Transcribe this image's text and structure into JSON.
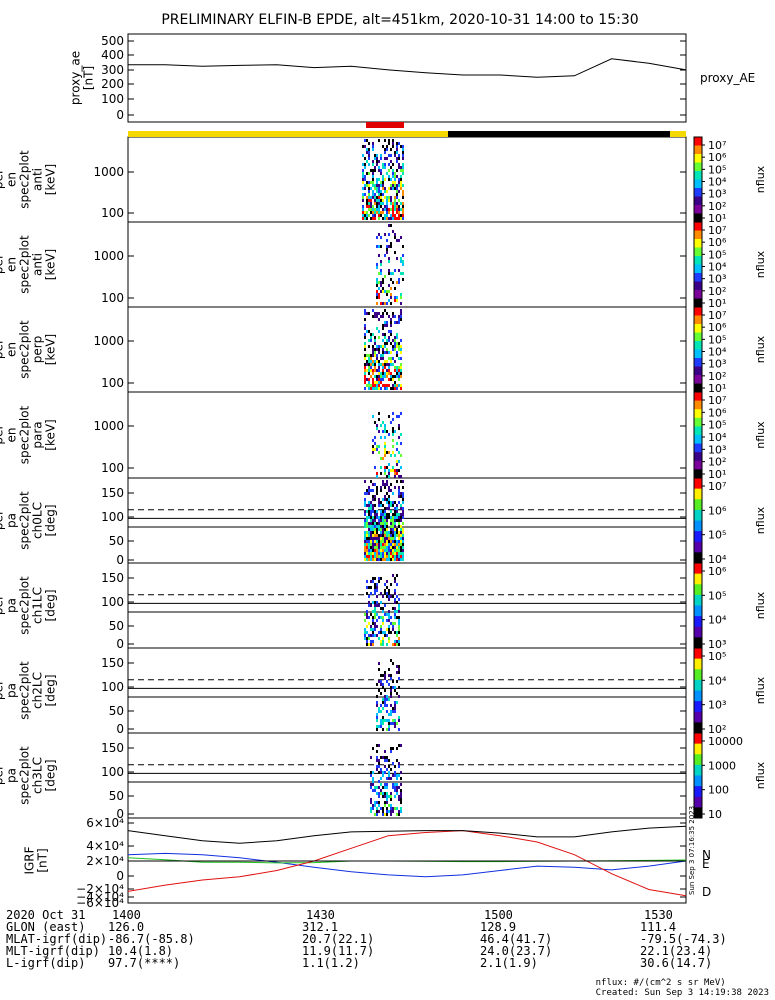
{
  "title": "PRELIMINARY ELFIN-B EPDE, alt=451km, 2020-10-31 14:00 to 15:30",
  "colors": {
    "sunlit_bar": "#f5d800",
    "shadow_bar": "#000000",
    "science_zone": "#e00000",
    "igrf_n": "#1030e0",
    "igrf_e": "#20c020",
    "igrf_d": "#e01010",
    "igrf_total": "#000000"
  },
  "panels": [
    {
      "id": "proxy_ae",
      "ylabel": [
        "proxy_ae",
        "[nT]"
      ],
      "ticks": [
        "500",
        "400",
        "300",
        "200",
        "100",
        "0"
      ],
      "right_label": "proxy_AE"
    },
    {
      "id": "en_anti",
      "ylabel": [
        "elb",
        "pef",
        "en",
        "spec2plot",
        "anti",
        "[keV]"
      ],
      "ticks": [
        "1000",
        "100"
      ],
      "cbar_ticks": [
        "10⁷",
        "10⁶",
        "10⁵",
        "10⁴",
        "10³",
        "10²",
        "10¹"
      ],
      "cbar_label": "nflux"
    },
    {
      "id": "en_antipara",
      "ylabel": [
        "elb",
        "pef",
        "en",
        "spec2plot",
        "anti",
        "[keV]"
      ],
      "ticks": [
        "1000",
        "100"
      ],
      "cbar_ticks": [
        "10⁷",
        "10⁶",
        "10⁵",
        "10⁴",
        "10³",
        "10²",
        "10¹"
      ],
      "cbar_label": "nflux"
    },
    {
      "id": "en_perp",
      "ylabel": [
        "elb",
        "pef",
        "en",
        "spec2plot",
        "perp",
        "[keV]"
      ],
      "ticks": [
        "1000",
        "100"
      ],
      "cbar_ticks": [
        "10⁷",
        "10⁶",
        "10⁵",
        "10⁴",
        "10³",
        "10²",
        "10¹"
      ],
      "cbar_label": "nflux"
    },
    {
      "id": "en_para",
      "ylabel": [
        "elb",
        "pef",
        "en",
        "spec2plot",
        "para",
        "[keV]"
      ],
      "ticks": [
        "1000",
        "100"
      ],
      "cbar_ticks": [
        "10⁷",
        "10⁶",
        "10⁵",
        "10⁴",
        "10³",
        "10²",
        "10¹"
      ],
      "cbar_label": "nflux"
    },
    {
      "id": "pa_ch0",
      "ylabel": [
        "elb",
        "pef",
        "pa",
        "spec2plot",
        "ch0LC",
        "[deg]"
      ],
      "ticks": [
        "150",
        "100",
        "50",
        "0"
      ],
      "cbar_ticks": [
        "10⁷",
        "10⁶",
        "10⁵",
        "10⁴"
      ],
      "cbar_label": "nflux"
    },
    {
      "id": "pa_ch1",
      "ylabel": [
        "elb",
        "pef",
        "pa",
        "spec2plot",
        "ch1LC",
        "[deg]"
      ],
      "ticks": [
        "150",
        "100",
        "50",
        "0"
      ],
      "cbar_ticks": [
        "10⁶",
        "10⁵",
        "10⁴",
        "10³"
      ],
      "cbar_label": "nflux"
    },
    {
      "id": "pa_ch2",
      "ylabel": [
        "elb",
        "pef",
        "pa",
        "spec2plot",
        "ch2LC",
        "[deg]"
      ],
      "ticks": [
        "150",
        "100",
        "50",
        "0"
      ],
      "cbar_ticks": [
        "10⁵",
        "10⁴",
        "10³",
        "10²"
      ],
      "cbar_label": "nflux"
    },
    {
      "id": "pa_ch3",
      "ylabel": [
        "elb",
        "pef",
        "pa",
        "spec2plot",
        "ch3LC",
        "[deg]"
      ],
      "ticks": [
        "150",
        "100",
        "50",
        "0"
      ],
      "cbar_ticks": [
        "10000",
        "1000",
        "100",
        "10"
      ],
      "cbar_label": "nflux"
    },
    {
      "id": "igrf",
      "ylabel": [
        "IGRF",
        "[nT]"
      ],
      "ticks": [
        "6×10⁴",
        "4×10⁴",
        "2×10⁴",
        "0",
        "−2×10⁴",
        "−4×10⁴",
        "−6×10⁴"
      ],
      "legend": [
        "N",
        "E",
        "D"
      ],
      "side_note": "Sun Sep  3 07:16:35 2023"
    }
  ],
  "footer": {
    "rows": [
      {
        "label": "2020 Oct 31",
        "values": [
          "1400",
          "1430",
          "1500",
          "1530"
        ]
      },
      {
        "label": "GLON (east)",
        "values": [
          "126.0",
          "312.1",
          "128.9",
          "111.4"
        ]
      },
      {
        "label": "MLAT-igrf(dip)",
        "values": [
          "-86.7(-85.8)",
          "20.7(22.1)",
          "46.4(41.7)",
          "-79.5(-74.3)"
        ]
      },
      {
        "label": "MLT-igrf(dip)",
        "values": [
          "10.4(1.8)",
          "11.9(11.7)",
          "24.0(23.7)",
          "22.1(23.4)"
        ]
      },
      {
        "label": "L-igrf(dip)",
        "values": [
          "97.7(****)",
          "1.1(1.2)",
          "2.1(1.9)",
          "30.6(14.7)"
        ]
      }
    ],
    "units_note": "nflux: #/(cm^2 s sr MeV)",
    "created": "Created: Sun Sep  3 14:19:38 2023"
  },
  "chart_data": [
    {
      "type": "line",
      "title": "PRELIMINARY ELFIN-B EPDE, alt=451km, 2020-10-31 14:00 to 15:30",
      "ylabel": "proxy_ae [nT]",
      "ylim": [
        0,
        500
      ],
      "x_minutes": [
        0,
        6,
        12,
        18,
        24,
        30,
        36,
        42,
        48,
        54,
        60,
        66,
        72,
        78,
        84,
        90
      ],
      "series": [
        {
          "name": "proxy_AE",
          "values": [
            340,
            340,
            330,
            335,
            340,
            320,
            330,
            305,
            285,
            270,
            270,
            255,
            265,
            380,
            350,
            305
          ]
        }
      ]
    },
    {
      "type": "line",
      "ylabel": "IGRF [nT]",
      "ylim": [
        -60000,
        60000
      ],
      "x_minutes": [
        0,
        6,
        12,
        18,
        24,
        30,
        36,
        42,
        48,
        54,
        60,
        66,
        72,
        78,
        84,
        90
      ],
      "series": [
        {
          "name": "N",
          "values": [
            10000,
            12000,
            10000,
            5000,
            -2000,
            -10000,
            -17000,
            -22000,
            -25000,
            -22000,
            -15000,
            -8000,
            -10000,
            -14000,
            -8000,
            0
          ]
        },
        {
          "name": "E",
          "values": [
            5000,
            2000,
            -2000,
            -2000,
            -3000,
            -2500,
            0,
            0,
            -500,
            -1000,
            -1000,
            -500,
            0,
            500,
            1000,
            1500
          ]
        },
        {
          "name": "D",
          "values": [
            -48000,
            -38000,
            -30000,
            -25000,
            -15000,
            0,
            20000,
            40000,
            45000,
            48000,
            40000,
            30000,
            10000,
            -20000,
            -45000,
            -55000
          ]
        },
        {
          "values": [
            48000,
            40000,
            32000,
            28000,
            32000,
            40000,
            46000,
            47000,
            48000,
            48000,
            44000,
            38000,
            38000,
            46000,
            52000,
            55000
          ]
        }
      ]
    },
    {
      "type": "heatmap",
      "ylabel": "elb pef en spec2plot anti [keV]",
      "y_scale": "log",
      "ylim": [
        60,
        7000
      ],
      "colorbar": {
        "label": "nflux",
        "range": [
          "10¹",
          "10⁷"
        ]
      }
    }
  ]
}
